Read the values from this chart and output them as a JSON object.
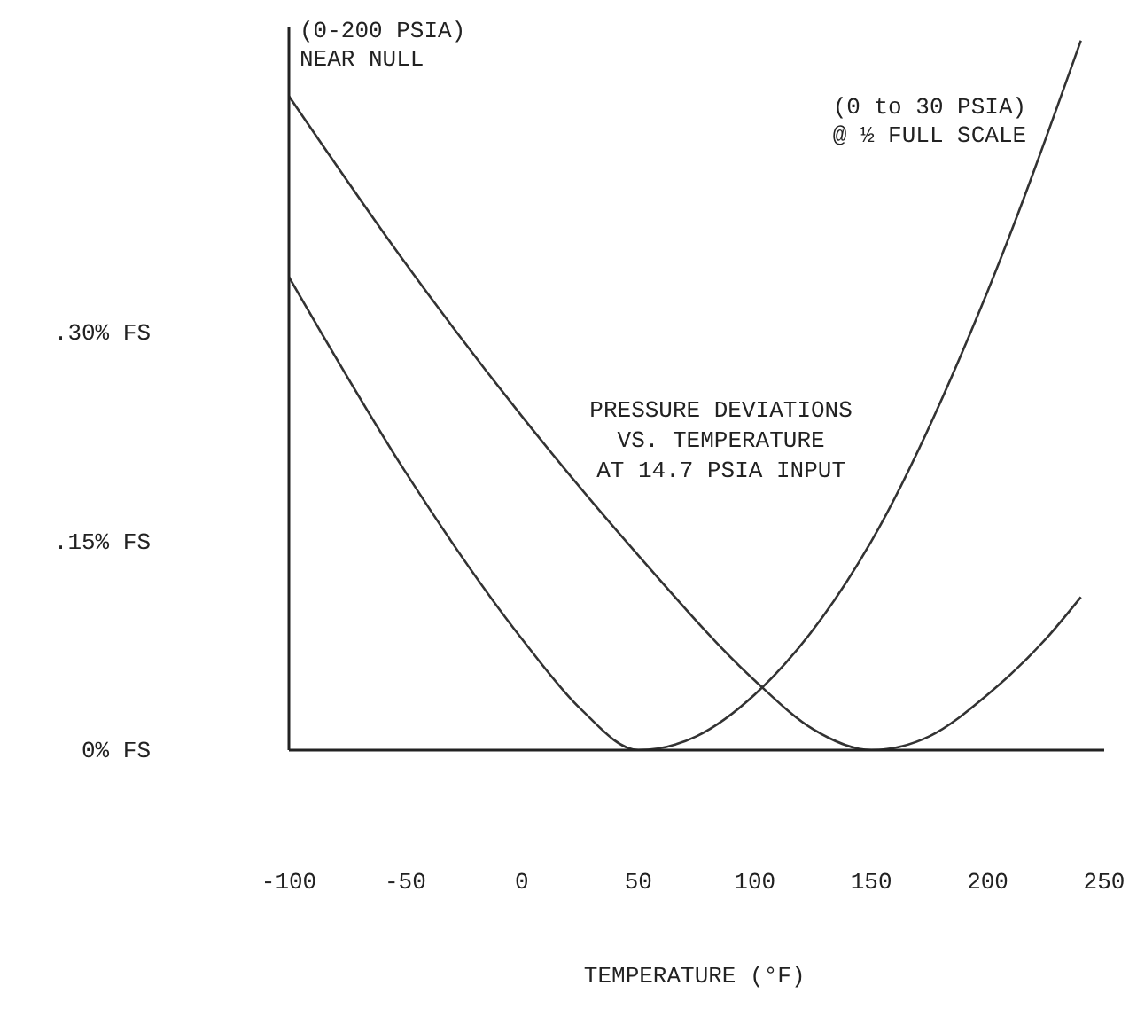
{
  "chart_data": {
    "type": "line",
    "title": "PRESSURE DEVIATIONS\nVS. TEMPERATURE\nAT 14.7 PSIA INPUT",
    "xlabel": "TEMPERATURE (°F)",
    "xlim": [
      -100,
      250
    ],
    "xticks": [
      -100,
      -50,
      0,
      50,
      100,
      150,
      200,
      250
    ],
    "ylim": [
      0,
      0.52
    ],
    "yticks": [
      {
        "value": 0,
        "label": "0% FS"
      },
      {
        "value": 0.15,
        "label": ".15% FS"
      },
      {
        "value": 0.3,
        "label": ".30% FS"
      }
    ],
    "grid": false,
    "marker": "none",
    "line_style": "solid",
    "series": [
      {
        "name": "(0-200 PSIA)\nNEAR NULL",
        "color": "#333333",
        "x": [
          -100,
          -50,
          0,
          50,
          100,
          125,
          150,
          175,
          200,
          225,
          240
        ],
        "values": [
          0.47,
          0.35,
          0.24,
          0.14,
          0.05,
          0.015,
          0,
          0.01,
          0.04,
          0.08,
          0.11
        ]
      },
      {
        "name": "(0 to 30 PSIA)\n@ ½ FULL SCALE",
        "color": "#333333",
        "x": [
          -100,
          -50,
          0,
          25,
          50,
          75,
          100,
          150,
          200,
          240
        ],
        "values": [
          0.34,
          0.2,
          0.08,
          0.03,
          0,
          0.01,
          0.04,
          0.15,
          0.33,
          0.51
        ]
      }
    ]
  }
}
